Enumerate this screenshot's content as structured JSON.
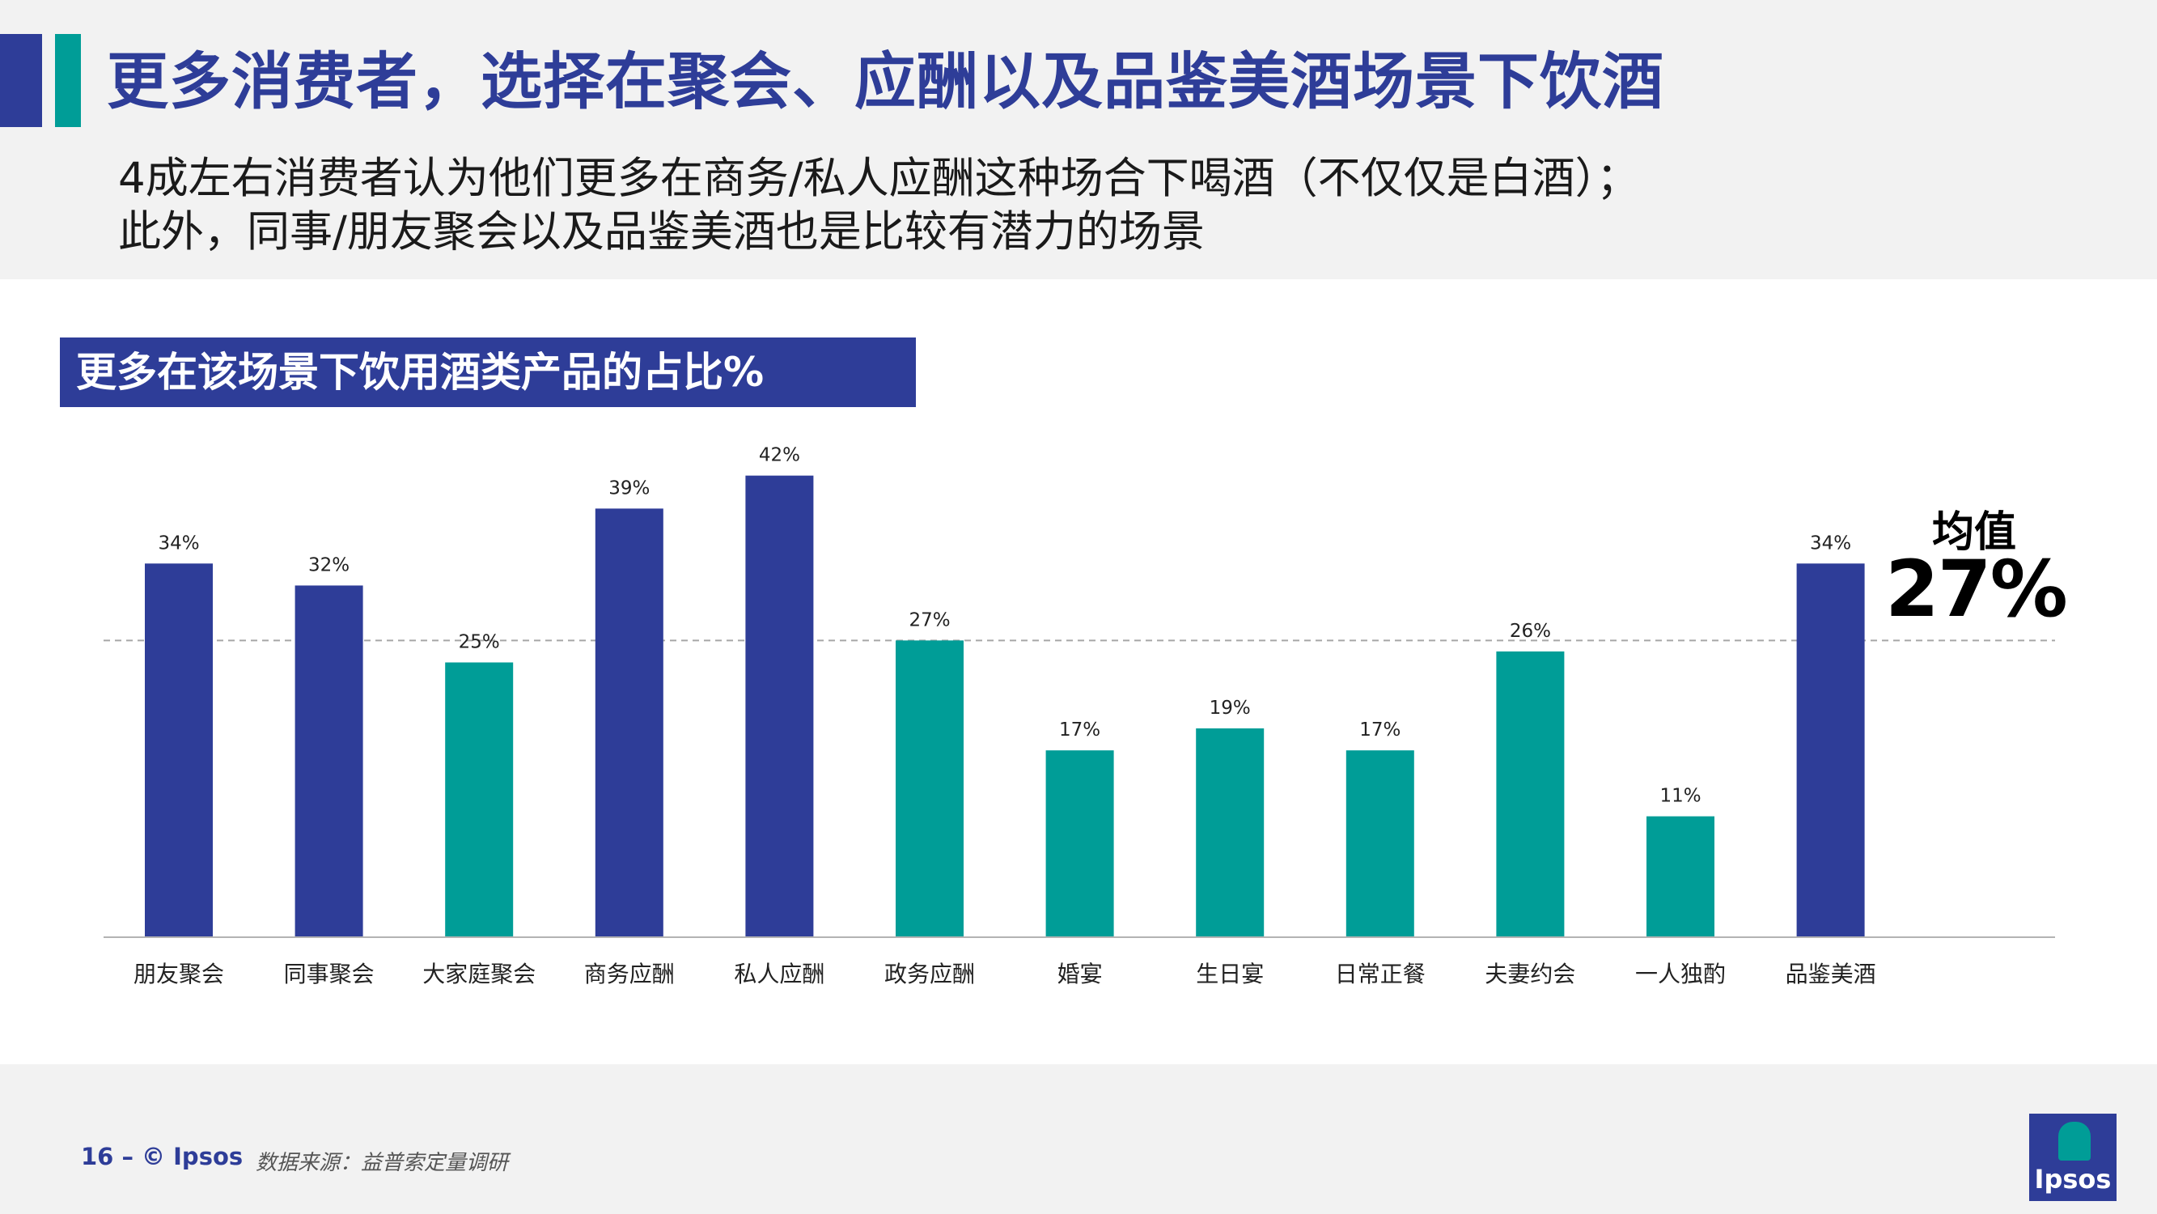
{
  "title": "更多消费者，选择在聚会、应酬以及品鉴美酒场景下饮酒",
  "subtitle": {
    "line1": "4成左右消费者认为他们更多在商务/私人应酬这种场合下喝酒（不仅仅是白酒）；",
    "line2": "此外，同事/朋友聚会以及品鉴美酒也是比较有潜力的场景"
  },
  "mean": {
    "label": "均值",
    "value": "27%"
  },
  "footer": {
    "page": "16 –  © Ipsos",
    "source": "数据来源：益普索定量调研"
  },
  "logo": {
    "text": "Ipsos"
  },
  "colors": {
    "dark_blue": "#2e3d98",
    "teal": "#009d97"
  },
  "chart_data": {
    "type": "bar",
    "title": "更多在该场景下饮用酒类产品的占比%",
    "categories": [
      "朋友聚会",
      "同事聚会",
      "大家庭聚会",
      "商务应酬",
      "私人应酬",
      "政务应酬",
      "婚宴",
      "生日宴",
      "日常正餐",
      "夫妻约会",
      "一人独酌",
      "品鉴美酒"
    ],
    "values": [
      34,
      32,
      25,
      39,
      42,
      27,
      17,
      19,
      17,
      26,
      11,
      34
    ],
    "labels": [
      "34%",
      "32%",
      "25%",
      "39%",
      "42%",
      "27%",
      "17%",
      "19%",
      "17%",
      "26%",
      "11%",
      "34%"
    ],
    "bar_colors": [
      "#2e3d98",
      "#2e3d98",
      "#009d97",
      "#2e3d98",
      "#2e3d98",
      "#009d97",
      "#009d97",
      "#009d97",
      "#009d97",
      "#009d97",
      "#009d97",
      "#2e3d98"
    ],
    "reference_line": 27,
    "ylim": [
      0,
      45
    ],
    "grid": false
  }
}
